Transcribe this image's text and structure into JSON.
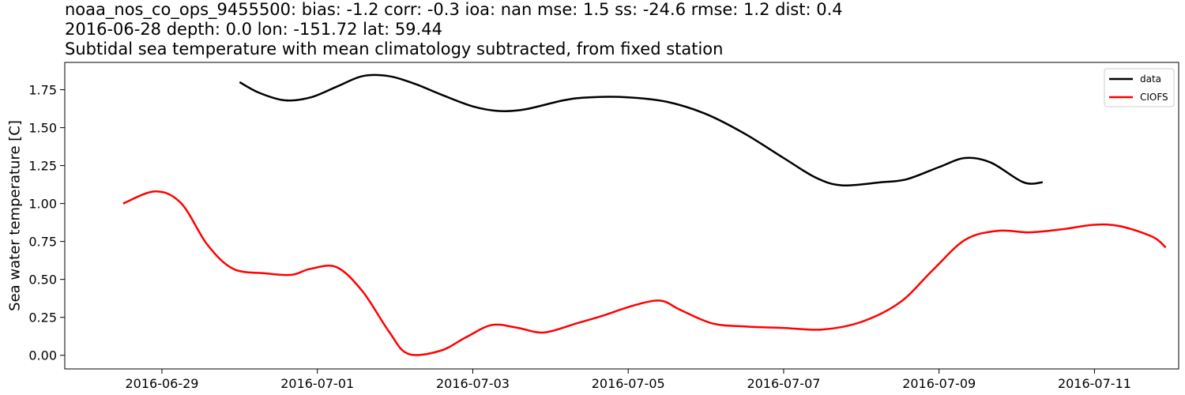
{
  "title": {
    "line1": "noaa_nos_co_ops_9455500: bias: -1.2  corr: -0.3  ioa: nan  mse: 1.5  ss: -24.6  rmse: 1.2  dist: 0.4",
    "line2": "2016-06-28 depth: 0.0 lon: -151.72 lat: 59.44",
    "line3": "Subtidal sea temperature with mean climatology subtracted, from fixed station"
  },
  "chart_data": {
    "type": "line",
    "ylabel": "Sea water temperature [C]",
    "xlabel": "",
    "xlim": [
      "2016-06-27T18:00",
      "2016-07-12T02:00"
    ],
    "ylim": [
      -0.09,
      1.93
    ],
    "x_ticks": [
      "2016-06-29",
      "2016-07-01",
      "2016-07-03",
      "2016-07-05",
      "2016-07-07",
      "2016-07-09",
      "2016-07-11"
    ],
    "y_ticks": [
      "0.00",
      "0.25",
      "0.50",
      "0.75",
      "1.00",
      "1.25",
      "1.50",
      "1.75"
    ],
    "grid": false,
    "legend_position": "top-right",
    "series": [
      {
        "name": "data",
        "color": "#000000",
        "points": [
          [
            "2016-06-30T00:00",
            1.8
          ],
          [
            "2016-06-30T06:00",
            1.73
          ],
          [
            "2016-06-30T14:00",
            1.68
          ],
          [
            "2016-06-30T22:00",
            1.7
          ],
          [
            "2016-07-01T06:00",
            1.77
          ],
          [
            "2016-07-01T14:00",
            1.84
          ],
          [
            "2016-07-01T22:00",
            1.84
          ],
          [
            "2016-07-02T06:00",
            1.79
          ],
          [
            "2016-07-02T14:00",
            1.72
          ],
          [
            "2016-07-03T00:00",
            1.64
          ],
          [
            "2016-07-03T08:00",
            1.61
          ],
          [
            "2016-07-03T16:00",
            1.62
          ],
          [
            "2016-07-04T04:00",
            1.68
          ],
          [
            "2016-07-04T12:00",
            1.7
          ],
          [
            "2016-07-05T00:00",
            1.7
          ],
          [
            "2016-07-05T12:00",
            1.67
          ],
          [
            "2016-07-06T00:00",
            1.59
          ],
          [
            "2016-07-06T12:00",
            1.46
          ],
          [
            "2016-07-07T00:00",
            1.3
          ],
          [
            "2016-07-07T10:00",
            1.17
          ],
          [
            "2016-07-07T18:00",
            1.12
          ],
          [
            "2016-07-08T06:00",
            1.14
          ],
          [
            "2016-07-08T14:00",
            1.16
          ],
          [
            "2016-07-09T00:00",
            1.24
          ],
          [
            "2016-07-09T08:00",
            1.3
          ],
          [
            "2016-07-09T16:00",
            1.27
          ],
          [
            "2016-07-10T02:00",
            1.14
          ],
          [
            "2016-07-10T08:00",
            1.14
          ]
        ]
      },
      {
        "name": "CIOFS",
        "color": "#ff0000",
        "points": [
          [
            "2016-06-28T12:00",
            1.0
          ],
          [
            "2016-06-28T22:00",
            1.08
          ],
          [
            "2016-06-29T06:00",
            1.0
          ],
          [
            "2016-06-29T14:00",
            0.73
          ],
          [
            "2016-06-29T22:00",
            0.57
          ],
          [
            "2016-06-30T08:00",
            0.54
          ],
          [
            "2016-06-30T16:00",
            0.53
          ],
          [
            "2016-06-30T22:00",
            0.57
          ],
          [
            "2016-07-01T06:00",
            0.58
          ],
          [
            "2016-07-01T14:00",
            0.42
          ],
          [
            "2016-07-01T22:00",
            0.16
          ],
          [
            "2016-07-02T04:00",
            0.01
          ],
          [
            "2016-07-02T14:00",
            0.03
          ],
          [
            "2016-07-02T22:00",
            0.12
          ],
          [
            "2016-07-03T06:00",
            0.2
          ],
          [
            "2016-07-03T14:00",
            0.18
          ],
          [
            "2016-07-03T22:00",
            0.15
          ],
          [
            "2016-07-04T08:00",
            0.21
          ],
          [
            "2016-07-04T16:00",
            0.26
          ],
          [
            "2016-07-05T02:00",
            0.33
          ],
          [
            "2016-07-05T10:00",
            0.36
          ],
          [
            "2016-07-05T16:00",
            0.3
          ],
          [
            "2016-07-06T02:00",
            0.21
          ],
          [
            "2016-07-06T12:00",
            0.19
          ],
          [
            "2016-07-07T00:00",
            0.18
          ],
          [
            "2016-07-07T12:00",
            0.17
          ],
          [
            "2016-07-08T00:00",
            0.22
          ],
          [
            "2016-07-08T12:00",
            0.35
          ],
          [
            "2016-07-08T22:00",
            0.56
          ],
          [
            "2016-07-09T08:00",
            0.76
          ],
          [
            "2016-07-09T18:00",
            0.82
          ],
          [
            "2016-07-10T04:00",
            0.81
          ],
          [
            "2016-07-10T14:00",
            0.83
          ],
          [
            "2016-07-11T00:00",
            0.86
          ],
          [
            "2016-07-11T08:00",
            0.85
          ],
          [
            "2016-07-11T18:00",
            0.78
          ],
          [
            "2016-07-11T22:00",
            0.71
          ]
        ]
      }
    ]
  }
}
